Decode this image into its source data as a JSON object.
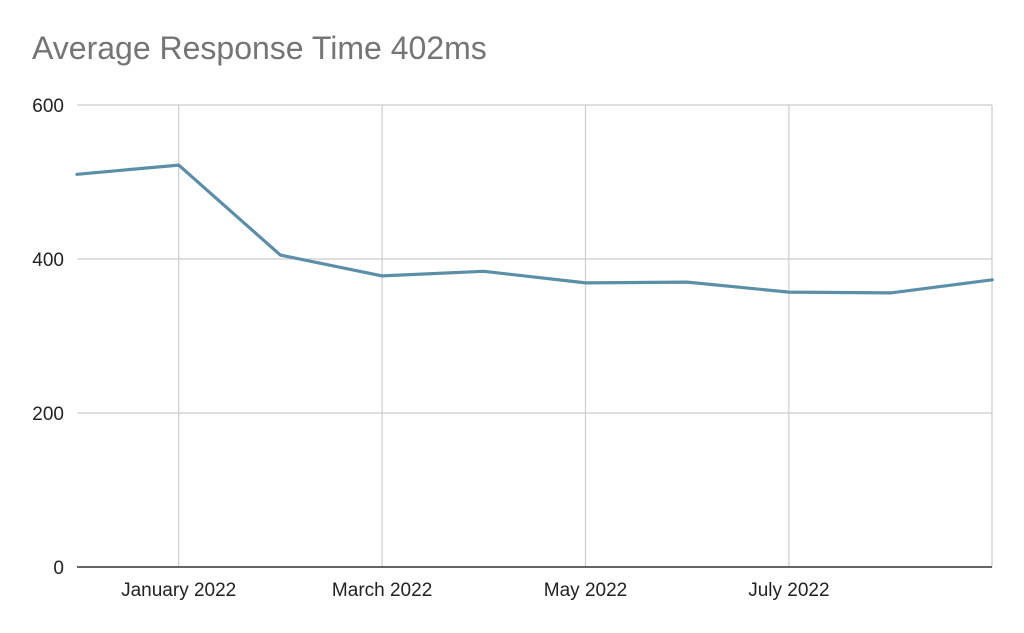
{
  "chart_data": {
    "type": "line",
    "title": "Average Response Time 402ms",
    "xlabel": "",
    "ylabel": "",
    "x": [
      "2021-12",
      "2022-01",
      "2022-02",
      "2022-03",
      "2022-04",
      "2022-05",
      "2022-06",
      "2022-07",
      "2022-08",
      "2022-09"
    ],
    "x_tick_values": [
      "2022-01",
      "2022-03",
      "2022-05",
      "2022-07"
    ],
    "x_tick_labels": [
      "January 2022",
      "March 2022",
      "May 2022",
      "July 2022"
    ],
    "series": [
      {
        "values": [
          510,
          522,
          405,
          378,
          384,
          369,
          370,
          357,
          356,
          373
        ],
        "color": "#5b8fa8"
      }
    ],
    "ylim": [
      0,
      600
    ],
    "y_ticks": [
      0,
      200,
      400,
      600
    ],
    "y_tick_labels": [
      "0",
      "200",
      "400",
      "600"
    ],
    "grid": true,
    "legend": "none"
  }
}
